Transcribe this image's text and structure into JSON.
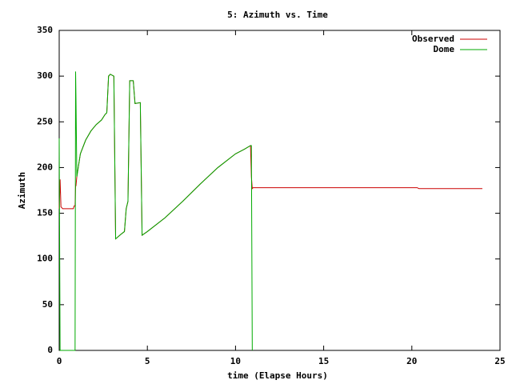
{
  "chart_data": {
    "type": "line",
    "title": "5: Azimuth vs. Time",
    "x_label": "time (Elapse Hours)",
    "y_label": "Azimuth",
    "x": [
      0,
      0.05,
      0.1,
      0.2,
      0.4,
      0.8,
      0.85,
      0.9,
      0.93,
      0.95,
      1.0,
      1.2,
      1.5,
      1.8,
      2.1,
      2.4,
      2.6,
      2.7,
      2.8,
      2.9,
      3.1,
      3.2,
      3.5,
      3.7,
      3.8,
      3.9,
      4.0,
      4.2,
      4.3,
      4.6,
      4.7,
      5,
      6,
      7,
      8,
      9,
      10,
      10.5,
      10.85,
      10.9,
      10.95,
      11,
      15,
      20.3,
      20.4,
      24
    ],
    "series": [
      {
        "name": "Observed",
        "color": "#cc0000",
        "values": [
          155,
          187,
          157,
          155,
          155,
          155,
          158,
          158,
          180,
          180,
          190,
          215,
          230,
          240,
          247,
          252,
          258,
          260,
          300,
          302,
          300,
          122,
          127,
          130,
          155,
          163,
          295,
          295,
          270,
          271,
          126,
          130,
          145,
          163,
          182,
          200,
          215,
          220,
          224,
          190,
          177,
          178,
          178,
          178,
          177,
          177
        ]
      },
      {
        "name": "Dome",
        "color": "#00aa00",
        "values": [
          232,
          0,
          0,
          0,
          0,
          0,
          0,
          0,
          305,
          277,
          190,
          215,
          230,
          240,
          247,
          252,
          258,
          260,
          300,
          302,
          300,
          122,
          127,
          130,
          155,
          163,
          295,
          295,
          270,
          271,
          126,
          130,
          145,
          163,
          182,
          200,
          215,
          220,
          224,
          224,
          0,
          null,
          null,
          null,
          null,
          null
        ]
      }
    ],
    "xlim": [
      0,
      25
    ],
    "xticks": [
      0,
      5,
      10,
      15,
      20,
      25
    ],
    "ylim": [
      0,
      350
    ],
    "yticks": [
      0,
      50,
      100,
      150,
      200,
      250,
      300,
      350
    ],
    "grid": false,
    "legend": "top-right"
  }
}
